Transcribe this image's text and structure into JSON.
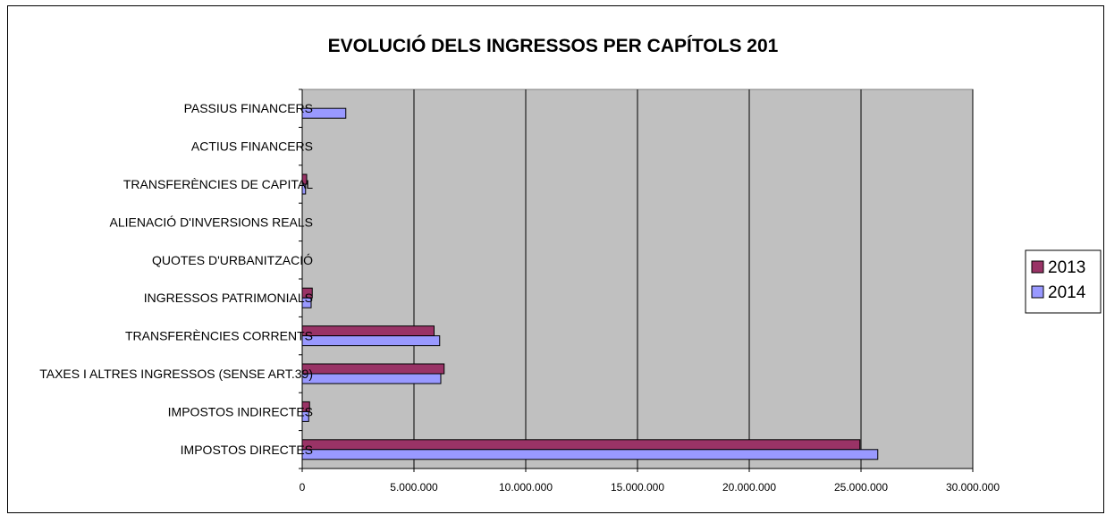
{
  "chart_data": {
    "type": "bar",
    "orientation": "horizontal",
    "title": "EVOLUCIÓ DELS INGRESSOS PER CAPÍTOLS 201",
    "categories": [
      "PASSIUS FINANCERS",
      "ACTIUS FINANCERS",
      "TRANSFERÈNCIES DE CAPITAL",
      "ALIENACIÓ D'INVERSIONS REALS",
      "QUOTES D'URBANITZACIÓ",
      "INGRESSOS PATRIMONIALS",
      "TRANSFERÈNCIES CORRENTS",
      "TAXES I ALTRES INGRESSOS (SENSE ART.39)",
      "IMPOSTOS INDIRECTES",
      "IMPOSTOS DIRECTES"
    ],
    "series": [
      {
        "name": "2013",
        "color": "#993366",
        "values": [
          0,
          0,
          200000,
          0,
          0,
          450000,
          5900000,
          6350000,
          330000,
          24950000
        ]
      },
      {
        "name": "2014",
        "color": "#9999ff",
        "values": [
          1950000,
          0,
          150000,
          0,
          0,
          400000,
          6150000,
          6200000,
          290000,
          25750000
        ]
      }
    ],
    "xlim": [
      0,
      30000000
    ],
    "xticks": [
      0,
      5000000,
      10000000,
      15000000,
      20000000,
      25000000,
      30000000
    ],
    "xtick_labels": [
      "0",
      "5.000.000",
      "10.000.000",
      "15.000.000",
      "20.000.000",
      "25.000.000",
      "30.000.000"
    ],
    "grid": true,
    "plot_background": "#c0c0c0",
    "legend_position": "right"
  }
}
